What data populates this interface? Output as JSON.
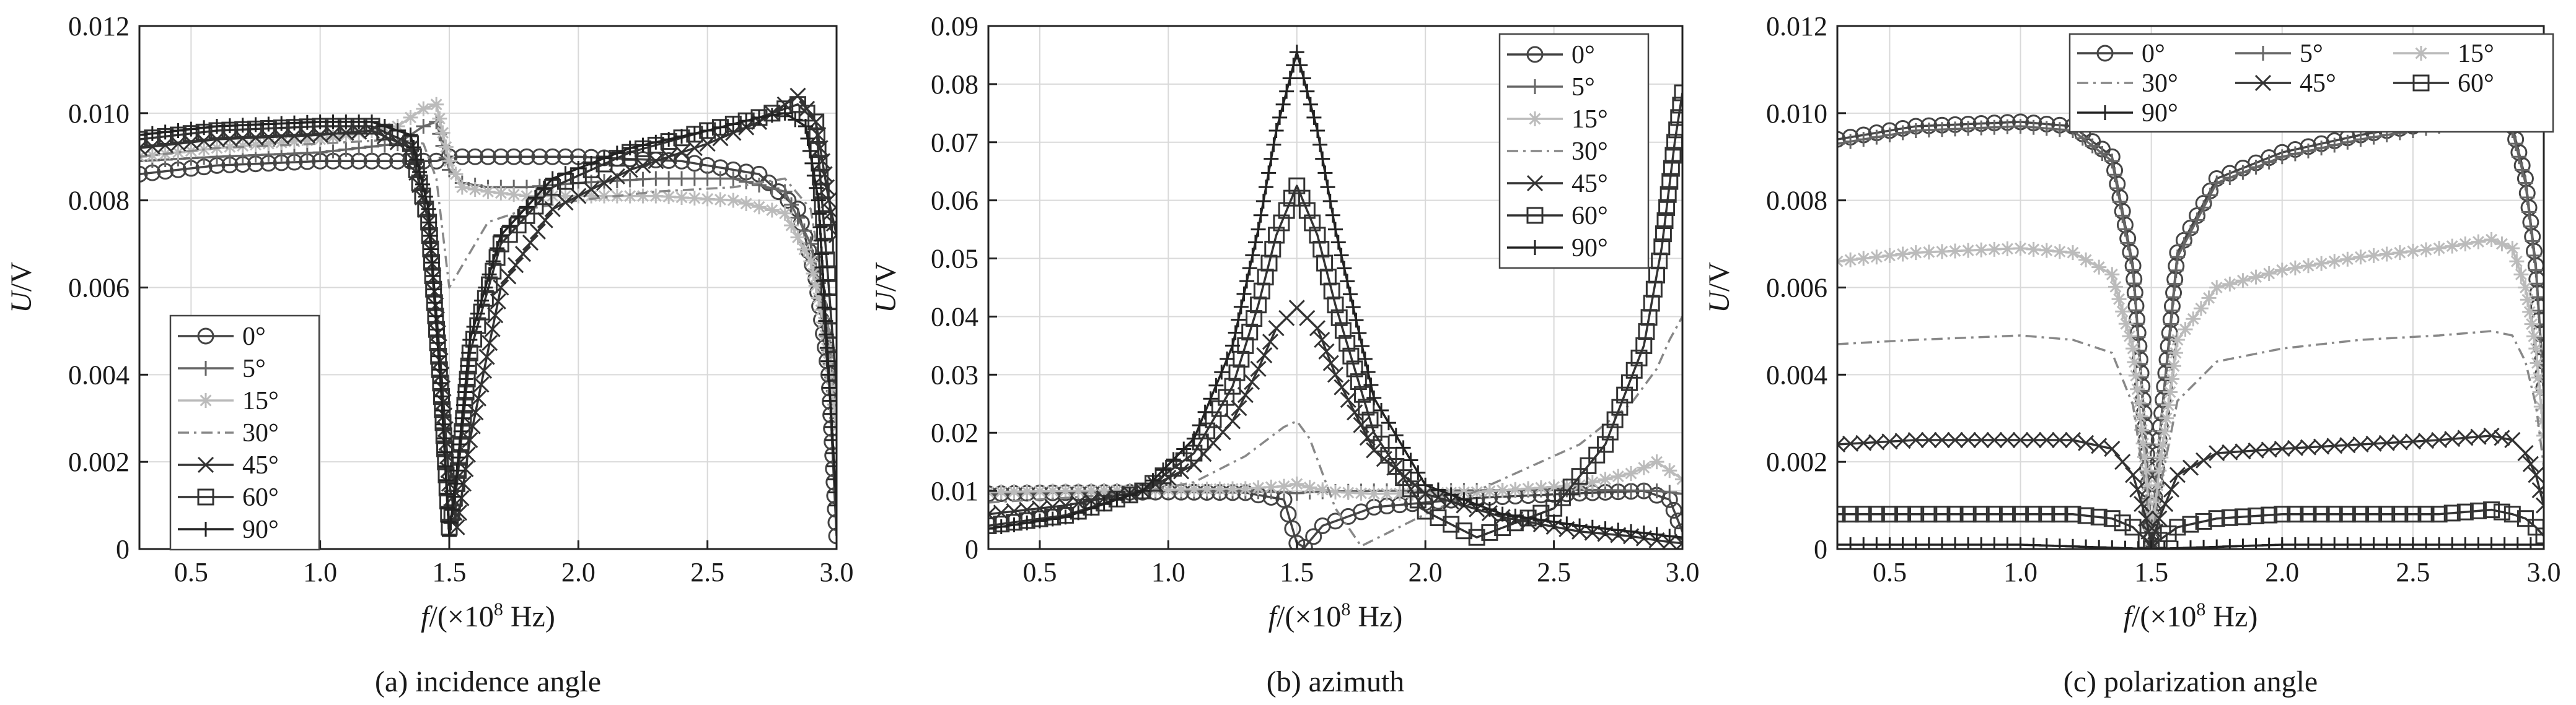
{
  "chart_data": [
    {
      "type": "line",
      "caption": "(a) incidence angle",
      "xlabel": {
        "italic": "f",
        "rest": "/(×10",
        "sup": "8",
        "tail": " Hz)"
      },
      "ylabel": {
        "italic": "U",
        "rest": "/V"
      },
      "xlim": [
        0.3,
        3.0
      ],
      "ylim": [
        0,
        0.012
      ],
      "xticks": [
        0.5,
        1.0,
        1.5,
        2.0,
        2.5,
        3.0
      ],
      "xtick_labels": [
        "0.5",
        "1.0",
        "1.5",
        "2.0",
        "2.5",
        "3.0"
      ],
      "yticks": [
        0,
        0.002,
        0.004,
        0.006,
        0.008,
        0.01,
        0.012
      ],
      "ytick_labels": [
        "0",
        "0.002",
        "0.004",
        "0.006",
        "0.008",
        "0.010",
        "0.012"
      ],
      "grid": true,
      "legend_position": "bottom-left",
      "legend_columns": 1,
      "series": [
        {
          "name": "0°",
          "color": "#444444",
          "marker": "circle",
          "x": [
            0.3,
            0.6,
            1.0,
            1.3,
            1.45,
            1.5,
            1.55,
            1.7,
            2.0,
            2.4,
            2.7,
            2.85,
            2.92,
            2.97,
            3.0
          ],
          "y": [
            0.0086,
            0.0088,
            0.0089,
            0.0089,
            0.0089,
            0.009,
            0.009,
            0.009,
            0.009,
            0.0089,
            0.0086,
            0.0078,
            0.0062,
            0.004,
            0.0003
          ]
        },
        {
          "name": "5°",
          "color": "#666666",
          "marker": "plus",
          "x": [
            0.3,
            0.6,
            1.0,
            1.3,
            1.4,
            1.45,
            1.5,
            1.55,
            1.65,
            1.8,
            2.0,
            2.3,
            2.6,
            2.8,
            2.9,
            2.95,
            3.0
          ],
          "y": [
            0.0089,
            0.009,
            0.0091,
            0.0093,
            0.0097,
            0.0098,
            0.0087,
            0.0084,
            0.0083,
            0.0083,
            0.0084,
            0.0085,
            0.0085,
            0.0082,
            0.007,
            0.0055,
            0.003
          ]
        },
        {
          "name": "15°",
          "color": "#bbbbbb",
          "marker": "star",
          "x": [
            0.3,
            0.6,
            1.0,
            1.3,
            1.4,
            1.45,
            1.5,
            1.55,
            1.65,
            1.8,
            2.0,
            2.3,
            2.6,
            2.8,
            2.9,
            2.95,
            3.0
          ],
          "y": [
            0.009,
            0.0092,
            0.0094,
            0.0097,
            0.0101,
            0.0102,
            0.0089,
            0.0083,
            0.0082,
            0.0081,
            0.0081,
            0.0081,
            0.008,
            0.0077,
            0.0066,
            0.0052,
            0.0028
          ]
        },
        {
          "name": "30°",
          "color": "#888888",
          "marker": "none",
          "dash": "18,8,4,8",
          "x": [
            0.3,
            0.6,
            1.0,
            1.3,
            1.4,
            1.45,
            1.5,
            1.55,
            1.65,
            1.8,
            2.0,
            2.3,
            2.6,
            2.8,
            2.9,
            2.95,
            3.0
          ],
          "y": [
            0.009,
            0.0092,
            0.0093,
            0.0094,
            0.0093,
            0.0085,
            0.006,
            0.0065,
            0.0075,
            0.0078,
            0.008,
            0.0082,
            0.0083,
            0.0085,
            0.0078,
            0.006,
            0.0035
          ]
        },
        {
          "name": "45°",
          "color": "#333333",
          "marker": "x",
          "x": [
            0.3,
            0.6,
            1.0,
            1.2,
            1.35,
            1.42,
            1.47,
            1.5,
            1.53,
            1.58,
            1.7,
            1.9,
            2.2,
            2.5,
            2.7,
            2.85,
            2.92,
            2.97,
            3.0
          ],
          "y": [
            0.0092,
            0.0094,
            0.0095,
            0.0096,
            0.0092,
            0.0075,
            0.004,
            0.0015,
            0.0005,
            0.0025,
            0.006,
            0.0078,
            0.0087,
            0.0093,
            0.0098,
            0.0104,
            0.0098,
            0.008,
            0.0072
          ]
        },
        {
          "name": "60°",
          "color": "#333333",
          "marker": "square",
          "x": [
            0.3,
            0.6,
            1.0,
            1.2,
            1.35,
            1.42,
            1.47,
            1.5,
            1.53,
            1.58,
            1.7,
            1.9,
            2.2,
            2.5,
            2.7,
            2.85,
            2.92,
            2.97,
            3.0
          ],
          "y": [
            0.0094,
            0.0096,
            0.0097,
            0.0097,
            0.0093,
            0.0075,
            0.0035,
            0.0005,
            0.0015,
            0.0045,
            0.007,
            0.0083,
            0.0091,
            0.0096,
            0.0099,
            0.0102,
            0.0098,
            0.006,
            0.0037
          ]
        },
        {
          "name": "90°",
          "color": "#222222",
          "marker": "plus",
          "x": [
            0.3,
            0.6,
            1.0,
            1.2,
            1.35,
            1.42,
            1.47,
            1.5,
            1.53,
            1.58,
            1.7,
            1.9,
            2.2,
            2.5,
            2.7,
            2.8,
            2.88,
            2.93,
            2.97,
            3.0
          ],
          "y": [
            0.0095,
            0.0097,
            0.0098,
            0.0098,
            0.0095,
            0.0078,
            0.0035,
            0.0003,
            0.0018,
            0.0048,
            0.0072,
            0.0085,
            0.0092,
            0.0096,
            0.0099,
            0.01,
            0.0097,
            0.008,
            0.004,
            0.001
          ]
        }
      ]
    },
    {
      "type": "line",
      "caption": "(b) azimuth",
      "xlabel": {
        "italic": "f",
        "rest": "/(×10",
        "sup": "8",
        "tail": " Hz)"
      },
      "ylabel": {
        "italic": "U",
        "rest": "/V"
      },
      "xlim": [
        0.3,
        3.0
      ],
      "ylim": [
        0,
        0.09
      ],
      "xticks": [
        0.5,
        1.0,
        1.5,
        2.0,
        2.5,
        3.0
      ],
      "xtick_labels": [
        "0.5",
        "1.0",
        "1.5",
        "2.0",
        "2.5",
        "3.0"
      ],
      "yticks": [
        0,
        0.01,
        0.02,
        0.03,
        0.04,
        0.05,
        0.06,
        0.07,
        0.08,
        0.09
      ],
      "ytick_labels": [
        "0",
        "0.01",
        "0.02",
        "0.03",
        "0.04",
        "0.05",
        "0.06",
        "0.07",
        "0.08",
        "0.09"
      ],
      "grid": true,
      "legend_position": "top-right",
      "legend_columns": 1,
      "series": [
        {
          "name": "0°",
          "color": "#444444",
          "marker": "circle",
          "x": [
            0.3,
            0.6,
            1.0,
            1.3,
            1.45,
            1.5,
            1.53,
            1.6,
            1.8,
            2.2,
            2.6,
            2.85,
            2.95,
            3.0
          ],
          "y": [
            0.0095,
            0.0097,
            0.0098,
            0.0097,
            0.0085,
            0.001,
            0.0003,
            0.004,
            0.0072,
            0.0088,
            0.0096,
            0.01,
            0.0085,
            0.003
          ]
        },
        {
          "name": "5°",
          "color": "#666666",
          "marker": "plus",
          "x": [
            0.3,
            0.6,
            1.0,
            1.3,
            1.45,
            1.5,
            1.55,
            1.65,
            1.8,
            2.2,
            2.6,
            2.9,
            3.0
          ],
          "y": [
            0.0096,
            0.0098,
            0.0099,
            0.0099,
            0.0098,
            0.0096,
            0.0098,
            0.0099,
            0.01,
            0.0101,
            0.0102,
            0.01,
            0.0095
          ]
        },
        {
          "name": "15°",
          "color": "#bbbbbb",
          "marker": "star",
          "x": [
            0.3,
            0.6,
            1.0,
            1.3,
            1.45,
            1.5,
            1.55,
            1.65,
            1.8,
            2.2,
            2.6,
            2.8,
            2.9,
            3.0
          ],
          "y": [
            0.0098,
            0.01,
            0.0102,
            0.0104,
            0.0108,
            0.0112,
            0.0106,
            0.0098,
            0.0095,
            0.0098,
            0.011,
            0.013,
            0.015,
            0.012
          ]
        },
        {
          "name": "30°",
          "color": "#888888",
          "marker": "none",
          "dash": "18,8,4,8",
          "x": [
            0.3,
            0.6,
            0.9,
            1.1,
            1.3,
            1.45,
            1.5,
            1.55,
            1.65,
            1.75,
            2.0,
            2.3,
            2.6,
            2.8,
            2.9,
            2.95,
            3.0
          ],
          "y": [
            0.008,
            0.0088,
            0.0098,
            0.0115,
            0.016,
            0.021,
            0.022,
            0.019,
            0.007,
            0.0005,
            0.006,
            0.012,
            0.018,
            0.025,
            0.031,
            0.036,
            0.04
          ]
        },
        {
          "name": "45°",
          "color": "#333333",
          "marker": "x",
          "x": [
            0.3,
            0.6,
            0.9,
            1.1,
            1.25,
            1.35,
            1.42,
            1.5,
            1.58,
            1.65,
            1.8,
            2.0,
            2.3,
            2.6,
            2.8,
            2.9,
            2.95,
            3.0
          ],
          "y": [
            0.006,
            0.0075,
            0.01,
            0.0145,
            0.022,
            0.031,
            0.038,
            0.0415,
            0.038,
            0.03,
            0.017,
            0.0095,
            0.0055,
            0.003,
            0.0022,
            0.0015,
            0.0012,
            0.001
          ]
        },
        {
          "name": "60°",
          "color": "#333333",
          "marker": "square",
          "x": [
            0.3,
            0.6,
            0.9,
            1.1,
            1.25,
            1.35,
            1.42,
            1.5,
            1.58,
            1.65,
            1.8,
            2.0,
            2.2,
            2.5,
            2.7,
            2.85,
            2.92,
            2.97,
            3.0
          ],
          "y": [
            0.004,
            0.0058,
            0.01,
            0.0165,
            0.028,
            0.042,
            0.054,
            0.0625,
            0.054,
            0.042,
            0.02,
            0.0065,
            0.002,
            0.007,
            0.018,
            0.035,
            0.052,
            0.07,
            0.0785
          ]
        },
        {
          "name": "90°",
          "color": "#222222",
          "marker": "plus",
          "x": [
            0.3,
            0.6,
            0.9,
            1.1,
            1.25,
            1.35,
            1.42,
            1.5,
            1.58,
            1.65,
            1.8,
            2.0,
            2.3,
            2.6,
            2.8,
            2.9,
            2.95,
            3.0
          ],
          "y": [
            0.0035,
            0.0055,
            0.01,
            0.019,
            0.035,
            0.055,
            0.072,
            0.0855,
            0.072,
            0.055,
            0.026,
            0.011,
            0.006,
            0.004,
            0.003,
            0.0025,
            0.0022,
            0.002
          ]
        }
      ]
    },
    {
      "type": "line",
      "caption": "(c) polarization angle",
      "xlabel": {
        "italic": "f",
        "rest": "/(×10",
        "sup": "8",
        "tail": " Hz)"
      },
      "ylabel": {
        "italic": "U",
        "rest": "/V"
      },
      "xlim": [
        0.3,
        3.0
      ],
      "ylim": [
        0,
        0.012
      ],
      "xticks": [
        0.5,
        1.0,
        1.5,
        2.0,
        2.5,
        3.0
      ],
      "xtick_labels": [
        "0.5",
        "1.0",
        "1.5",
        "2.0",
        "2.5",
        "3.0"
      ],
      "yticks": [
        0,
        0.002,
        0.004,
        0.006,
        0.008,
        0.01,
        0.012
      ],
      "ytick_labels": [
        "0",
        "0.002",
        "0.004",
        "0.006",
        "0.008",
        "0.010",
        "0.012"
      ],
      "grid": true,
      "legend_position": "top",
      "legend_columns": 3,
      "series": [
        {
          "name": "0°",
          "color": "#444444",
          "marker": "circle",
          "x": [
            0.3,
            0.6,
            1.0,
            1.2,
            1.35,
            1.43,
            1.48,
            1.5,
            1.53,
            1.6,
            1.75,
            2.0,
            2.3,
            2.6,
            2.8,
            2.88,
            2.93,
            2.97,
            3.0
          ],
          "y": [
            0.0094,
            0.0097,
            0.0098,
            0.0097,
            0.009,
            0.0065,
            0.0025,
            0.0002,
            0.0025,
            0.0068,
            0.0085,
            0.0091,
            0.0095,
            0.0098,
            0.01,
            0.0097,
            0.0085,
            0.0065,
            0.0037
          ]
        },
        {
          "name": "5°",
          "color": "#666666",
          "marker": "plus",
          "x": [
            0.3,
            0.6,
            1.0,
            1.2,
            1.35,
            1.43,
            1.48,
            1.5,
            1.53,
            1.6,
            1.75,
            2.0,
            2.3,
            2.6,
            2.8,
            2.88,
            2.93,
            2.97,
            3.0
          ],
          "y": [
            0.0093,
            0.0096,
            0.0097,
            0.0096,
            0.0089,
            0.0064,
            0.0024,
            0.0002,
            0.0024,
            0.0067,
            0.0084,
            0.009,
            0.0094,
            0.0097,
            0.0099,
            0.0096,
            0.0084,
            0.0064,
            0.0036
          ]
        },
        {
          "name": "15°",
          "color": "#bbbbbb",
          "marker": "star",
          "x": [
            0.3,
            0.6,
            1.0,
            1.2,
            1.35,
            1.43,
            1.48,
            1.5,
            1.53,
            1.6,
            1.75,
            2.0,
            2.3,
            2.6,
            2.8,
            2.88,
            2.93,
            2.97,
            3.0
          ],
          "y": [
            0.0066,
            0.0068,
            0.0069,
            0.0068,
            0.0063,
            0.0046,
            0.0018,
            0.0001,
            0.0018,
            0.0048,
            0.006,
            0.0064,
            0.0067,
            0.0069,
            0.0071,
            0.0069,
            0.006,
            0.0046,
            0.0026
          ]
        },
        {
          "name": "30°",
          "color": "#888888",
          "marker": "none",
          "dash": "18,8,4,8",
          "x": [
            0.3,
            0.6,
            1.0,
            1.2,
            1.35,
            1.43,
            1.48,
            1.5,
            1.53,
            1.6,
            1.75,
            2.0,
            2.3,
            2.6,
            2.8,
            2.88,
            2.93,
            2.97,
            3.0
          ],
          "y": [
            0.0047,
            0.0048,
            0.0049,
            0.0048,
            0.0045,
            0.0033,
            0.0013,
            0.0001,
            0.0013,
            0.0034,
            0.0043,
            0.0046,
            0.0048,
            0.0049,
            0.005,
            0.0049,
            0.0043,
            0.0033,
            0.0019
          ]
        },
        {
          "name": "45°",
          "color": "#333333",
          "marker": "x",
          "x": [
            0.3,
            0.6,
            1.0,
            1.2,
            1.35,
            1.43,
            1.48,
            1.5,
            1.53,
            1.6,
            1.75,
            2.0,
            2.3,
            2.6,
            2.8,
            2.88,
            2.93,
            2.97,
            3.0
          ],
          "y": [
            0.0024,
            0.0025,
            0.0025,
            0.0025,
            0.0023,
            0.0017,
            0.0007,
            0.0001,
            0.0007,
            0.0017,
            0.0022,
            0.0023,
            0.0024,
            0.0025,
            0.0026,
            0.0025,
            0.0022,
            0.0017,
            0.001
          ]
        },
        {
          "name": "60°",
          "color": "#333333",
          "marker": "square",
          "x": [
            0.3,
            0.6,
            1.0,
            1.2,
            1.35,
            1.43,
            1.48,
            1.5,
            1.53,
            1.6,
            1.75,
            2.0,
            2.3,
            2.6,
            2.8,
            2.88,
            2.93,
            2.97,
            3.0
          ],
          "y": [
            0.0008,
            0.0008,
            0.0008,
            0.0008,
            0.0007,
            0.0005,
            0.0002,
            0.0,
            0.0002,
            0.0005,
            0.0007,
            0.0008,
            0.0008,
            0.0008,
            0.0009,
            0.0008,
            0.0007,
            0.0005,
            0.0003
          ]
        },
        {
          "name": "90°",
          "color": "#222222",
          "marker": "plus",
          "x": [
            0.3,
            0.6,
            1.0,
            1.5,
            2.0,
            2.5,
            3.0
          ],
          "y": [
            0.0001,
            0.0001,
            0.0001,
            0.0,
            0.0001,
            0.0001,
            0.0001
          ]
        }
      ]
    }
  ]
}
